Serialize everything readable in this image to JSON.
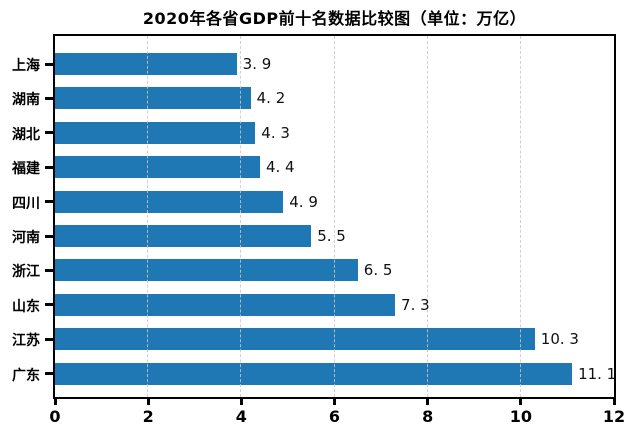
{
  "chart_data": {
    "type": "bar",
    "orientation": "horizontal",
    "title": "2020年各省GDP前十名数据比较图（单位：万亿）",
    "categories": [
      "上海",
      "湖南",
      "湖北",
      "福建",
      "四川",
      "河南",
      "浙江",
      "山东",
      "江苏",
      "广东"
    ],
    "values": [
      3.9,
      4.2,
      4.3,
      4.4,
      4.9,
      5.5,
      6.5,
      7.3,
      10.3,
      11.1
    ],
    "value_labels": [
      "3. 9",
      "4. 2",
      "4. 3",
      "4. 4",
      "4. 9",
      "5. 5",
      "6. 5",
      "7. 3",
      "10. 3",
      "11. 1"
    ],
    "xlabel": "",
    "ylabel": "",
    "xlim": [
      0,
      12
    ],
    "xticks": [
      0,
      2,
      4,
      6,
      8,
      10,
      12
    ],
    "xtick_labels": [
      "0",
      "2",
      "4",
      "6",
      "8",
      "10",
      "12"
    ],
    "grid": "vertical-dashed",
    "legend": "none",
    "bar_color": "#1f77b4",
    "grid_color": "#c8c8c8",
    "axis_color": "#000000",
    "value_label_color": "#111111",
    "title_color": "#000000"
  }
}
